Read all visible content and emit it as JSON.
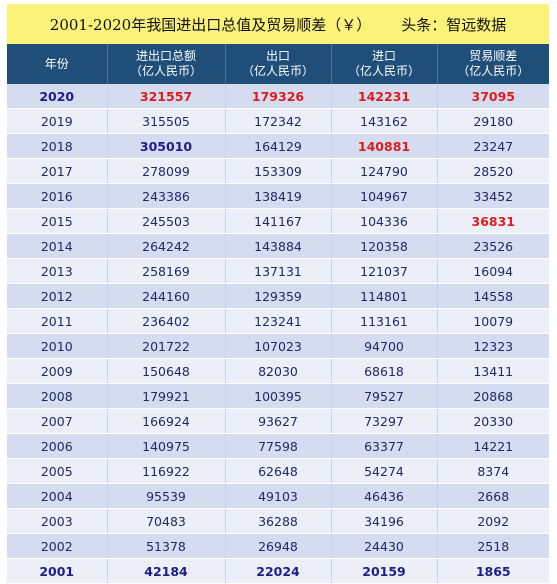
{
  "title": "2001-2020年我国进出口总值及贸易顺差（￥）",
  "source": "头条：智远数据",
  "headers": [
    {
      "line1": "年份",
      "line2": ""
    },
    {
      "line1": "进出口总额",
      "line2": "（亿人民币）"
    },
    {
      "line1": "出口",
      "line2": "（亿人民币）"
    },
    {
      "line1": "进口",
      "line2": "（亿人民币）"
    },
    {
      "line1": "贸易顺差",
      "line2": "（亿人民币）"
    }
  ],
  "rows": [
    {
      "year": "2020",
      "total": "321557",
      "export": "179326",
      "import": "142231",
      "surplus": "37095",
      "styles": [
        "bold",
        "red",
        "red",
        "red",
        "red"
      ]
    },
    {
      "year": "2019",
      "total": "315505",
      "export": "172342",
      "import": "143162",
      "surplus": "29180",
      "styles": [
        "",
        "",
        "",
        "",
        ""
      ]
    },
    {
      "year": "2018",
      "total": "305010",
      "export": "164129",
      "import": "140881",
      "surplus": "23247",
      "styles": [
        "",
        "bold",
        "",
        "red",
        ""
      ]
    },
    {
      "year": "2017",
      "total": "278099",
      "export": "153309",
      "import": "124790",
      "surplus": "28520",
      "styles": [
        "",
        "",
        "",
        "",
        ""
      ]
    },
    {
      "year": "2016",
      "total": "243386",
      "export": "138419",
      "import": "104967",
      "surplus": "33452",
      "styles": [
        "",
        "",
        "",
        "",
        ""
      ]
    },
    {
      "year": "2015",
      "total": "245503",
      "export": "141167",
      "import": "104336",
      "surplus": "36831",
      "styles": [
        "",
        "",
        "",
        "",
        "red"
      ]
    },
    {
      "year": "2014",
      "total": "264242",
      "export": "143884",
      "import": "120358",
      "surplus": "23526",
      "styles": [
        "",
        "",
        "",
        "",
        ""
      ]
    },
    {
      "year": "2013",
      "total": "258169",
      "export": "137131",
      "import": "121037",
      "surplus": "16094",
      "styles": [
        "",
        "",
        "",
        "",
        ""
      ]
    },
    {
      "year": "2012",
      "total": "244160",
      "export": "129359",
      "import": "114801",
      "surplus": "14558",
      "styles": [
        "",
        "",
        "",
        "",
        ""
      ]
    },
    {
      "year": "2011",
      "total": "236402",
      "export": "123241",
      "import": "113161",
      "surplus": "10079",
      "styles": [
        "",
        "",
        "",
        "",
        ""
      ]
    },
    {
      "year": "2010",
      "total": "201722",
      "export": "107023",
      "import": "94700",
      "surplus": "12323",
      "styles": [
        "",
        "",
        "",
        "",
        ""
      ]
    },
    {
      "year": "2009",
      "total": "150648",
      "export": "82030",
      "import": "68618",
      "surplus": "13411",
      "styles": [
        "",
        "",
        "",
        "",
        ""
      ]
    },
    {
      "year": "2008",
      "total": "179921",
      "export": "100395",
      "import": "79527",
      "surplus": "20868",
      "styles": [
        "",
        "",
        "",
        "",
        ""
      ]
    },
    {
      "year": "2007",
      "total": "166924",
      "export": "93627",
      "import": "73297",
      "surplus": "20330",
      "styles": [
        "",
        "",
        "",
        "",
        ""
      ]
    },
    {
      "year": "2006",
      "total": "140975",
      "export": "77598",
      "import": "63377",
      "surplus": "14221",
      "styles": [
        "",
        "",
        "",
        "",
        ""
      ]
    },
    {
      "year": "2005",
      "total": "116922",
      "export": "62648",
      "import": "54274",
      "surplus": "8374",
      "styles": [
        "",
        "",
        "",
        "",
        ""
      ]
    },
    {
      "year": "2004",
      "total": "95539",
      "export": "49103",
      "import": "46436",
      "surplus": "2668",
      "styles": [
        "",
        "",
        "",
        "",
        ""
      ]
    },
    {
      "year": "2003",
      "total": "70483",
      "export": "36288",
      "import": "34196",
      "surplus": "2092",
      "styles": [
        "",
        "",
        "",
        "",
        ""
      ]
    },
    {
      "year": "2002",
      "total": "51378",
      "export": "26948",
      "import": "24430",
      "surplus": "2518",
      "styles": [
        "",
        "",
        "",
        "",
        ""
      ]
    },
    {
      "year": "2001",
      "total": "42184",
      "export": "22024",
      "import": "20159",
      "surplus": "1865",
      "styles": [
        "bold",
        "bold",
        "bold",
        "bold",
        "bold"
      ]
    }
  ],
  "colors": {
    "title_bg": "#fbf27a",
    "header_bg": "#1f4e79",
    "row_odd": "#d6dcef",
    "row_even": "#eceff8",
    "highlight_red": "#d81e1e",
    "highlight_blue": "#1c1f8a"
  }
}
